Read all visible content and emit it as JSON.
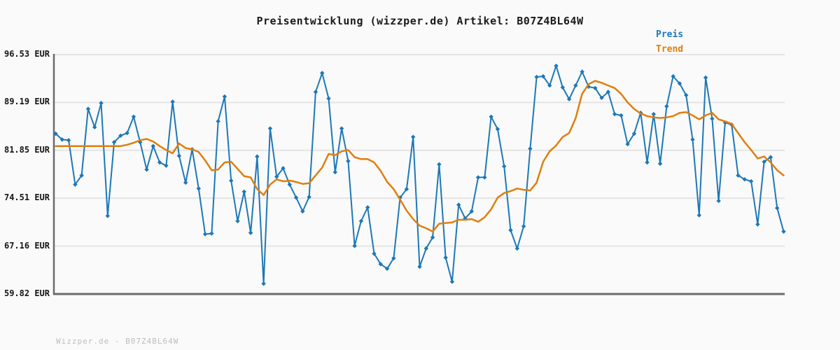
{
  "watermark": "Wizzper.de - B07Z4BL64W",
  "colors": {
    "background": "#fafafa",
    "grid": "#e4e4e4",
    "axis": "#6b6b6b",
    "price": "#1d78b6",
    "trend": "#e07e0e",
    "title_text": "#1a1a1a",
    "watermark_text": "#bdbdbd"
  },
  "chart_data": {
    "type": "line",
    "title": "Preisentwicklung (wizzper.de) Artikel: B07Z4BL64W",
    "xlabel": "",
    "ylabel": "",
    "ylim": [
      59.82,
      96.53
    ],
    "grid": true,
    "legend_position": "top-right",
    "x_tick_labels": [],
    "y_ticks": [
      {
        "label": "96.53 EUR",
        "value": 96.53
      },
      {
        "label": "89.19 EUR",
        "value": 89.19
      },
      {
        "label": "81.85 EUR",
        "value": 81.85
      },
      {
        "label": "74.51 EUR",
        "value": 74.51
      },
      {
        "label": "67.16 EUR",
        "value": 67.16
      },
      {
        "label": "59.82 EUR",
        "value": 59.82
      }
    ],
    "unit": "EUR",
    "series": [
      {
        "name": "Preis",
        "color": "#1d78b6",
        "marker": "diamond",
        "values": [
          84.4,
          83.5,
          83.4,
          76.6,
          78.0,
          88.2,
          85.4,
          89.1,
          71.8,
          83.1,
          84.1,
          84.5,
          87.0,
          83.1,
          78.9,
          82.5,
          80.0,
          79.5,
          89.3,
          81.0,
          76.9,
          82.0,
          76.0,
          69.0,
          69.1,
          86.3,
          90.1,
          77.2,
          71.0,
          75.5,
          69.2,
          80.9,
          61.4,
          85.2,
          77.8,
          79.1,
          76.6,
          74.6,
          72.5,
          74.7,
          90.8,
          93.7,
          89.8,
          78.5,
          85.2,
          80.2,
          67.2,
          71.0,
          73.1,
          66.0,
          64.4,
          63.7,
          65.3,
          74.6,
          75.9,
          83.9,
          64.0,
          66.8,
          68.5,
          79.7,
          65.4,
          61.7,
          73.5,
          71.4,
          72.5,
          77.7,
          77.7,
          87.0,
          85.1,
          79.4,
          69.6,
          66.8,
          70.2,
          82.1,
          93.1,
          93.2,
          91.8,
          94.8,
          91.5,
          89.7,
          91.8,
          93.9,
          91.6,
          91.4,
          89.9,
          90.8,
          87.4,
          87.2,
          82.8,
          84.4,
          87.6,
          80.0,
          87.4,
          79.8,
          88.6,
          93.2,
          92.1,
          90.3,
          83.5,
          71.9,
          93.0,
          86.7,
          74.1,
          86.1,
          85.8,
          78.0,
          77.4,
          77.1,
          70.5,
          80.1,
          80.8,
          73.0,
          69.4
        ]
      },
      {
        "name": "Trend",
        "color": "#e07e0e",
        "marker": "none",
        "values": [
          82.5,
          82.5,
          82.5,
          82.5,
          82.5,
          82.5,
          82.5,
          82.5,
          82.5,
          82.5,
          82.5,
          82.7,
          83.0,
          83.4,
          83.6,
          83.2,
          82.5,
          81.9,
          81.4,
          82.9,
          82.2,
          82.0,
          81.6,
          80.3,
          78.8,
          78.9,
          80.0,
          80.1,
          79.0,
          77.9,
          77.7,
          75.9,
          75.0,
          76.6,
          77.4,
          77.1,
          77.2,
          77.0,
          76.7,
          76.8,
          78.0,
          79.2,
          81.3,
          81.1,
          81.7,
          81.9,
          80.8,
          80.5,
          80.5,
          80.0,
          78.7,
          77.0,
          75.9,
          74.3,
          72.6,
          71.3,
          70.3,
          69.9,
          69.4,
          70.6,
          70.7,
          70.8,
          71.2,
          71.2,
          71.3,
          70.9,
          71.6,
          72.8,
          74.6,
          75.3,
          75.6,
          76.0,
          75.8,
          75.7,
          76.9,
          80.1,
          81.7,
          82.6,
          83.9,
          84.5,
          86.8,
          90.5,
          92.0,
          92.5,
          92.2,
          91.8,
          91.4,
          90.5,
          89.2,
          88.2,
          87.5,
          87.1,
          86.9,
          86.8,
          86.9,
          87.1,
          87.6,
          87.7,
          87.2,
          86.6,
          87.2,
          87.6,
          86.6,
          86.3,
          85.9,
          84.5,
          83.1,
          81.9,
          80.6,
          80.9,
          80.0,
          78.8,
          78.0
        ]
      }
    ]
  }
}
